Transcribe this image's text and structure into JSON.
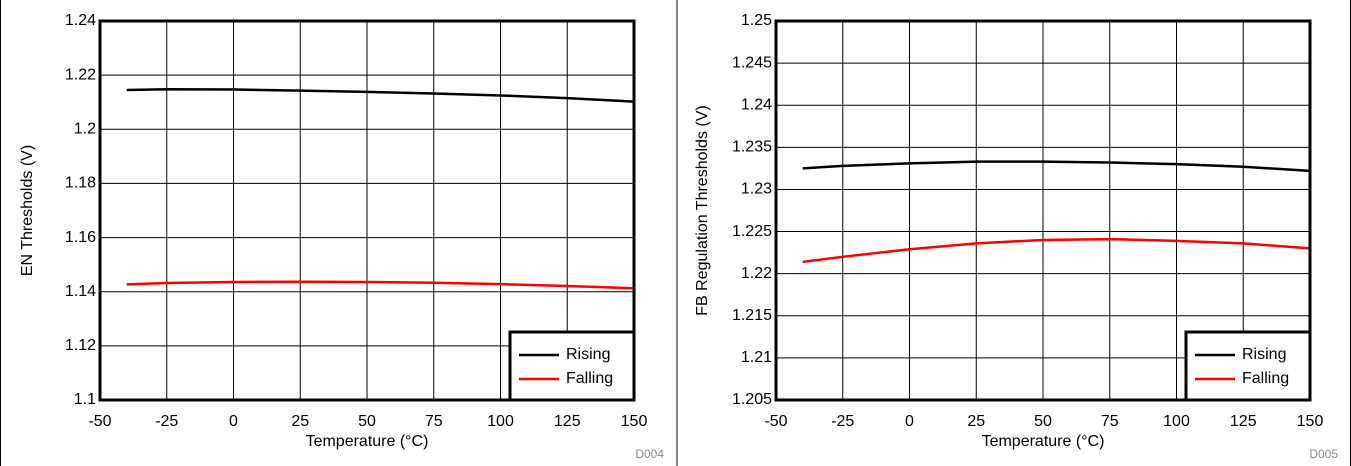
{
  "chart_data": [
    {
      "type": "line",
      "xlabel": "Temperature (°C)",
      "ylabel": "EN Thresholds (V)",
      "footnote": "D004",
      "x": [
        -40,
        -25,
        0,
        25,
        50,
        75,
        100,
        125,
        150
      ],
      "series": [
        {
          "name": "Rising",
          "color": "#000000",
          "values": [
            1.2145,
            1.2148,
            1.2147,
            1.2143,
            1.2138,
            1.2132,
            1.2125,
            1.2115,
            1.2102
          ]
        },
        {
          "name": "Falling",
          "color": "#ff0000",
          "values": [
            1.1427,
            1.1432,
            1.1436,
            1.1437,
            1.1436,
            1.1433,
            1.1428,
            1.1421,
            1.1413
          ]
        }
      ],
      "xlim": [
        -50,
        150
      ],
      "xticks": [
        -50,
        -25,
        0,
        25,
        50,
        75,
        100,
        125,
        150
      ],
      "ylim": [
        1.1,
        1.24
      ],
      "yticks": [
        1.1,
        1.12,
        1.14,
        1.16,
        1.18,
        1.2,
        1.22,
        1.24
      ],
      "grid": true,
      "legend": "lower right"
    },
    {
      "type": "line",
      "xlabel": "Temperature (°C)",
      "ylabel": "FB Regulation Thresholds (V)",
      "footnote": "D005",
      "x": [
        -40,
        -25,
        0,
        25,
        50,
        75,
        100,
        125,
        150
      ],
      "series": [
        {
          "name": "Rising",
          "color": "#000000",
          "values": [
            1.2325,
            1.2328,
            1.2331,
            1.2333,
            1.2333,
            1.2332,
            1.233,
            1.2327,
            1.2322
          ]
        },
        {
          "name": "Falling",
          "color": "#ff0000",
          "values": [
            1.2214,
            1.222,
            1.2229,
            1.2236,
            1.224,
            1.2241,
            1.2239,
            1.2236,
            1.223
          ]
        }
      ],
      "xlim": [
        -50,
        150
      ],
      "xticks": [
        -50,
        -25,
        0,
        25,
        50,
        75,
        100,
        125,
        150
      ],
      "ylim": [
        1.205,
        1.25
      ],
      "yticks": [
        1.205,
        1.21,
        1.215,
        1.22,
        1.225,
        1.23,
        1.235,
        1.24,
        1.245,
        1.25
      ],
      "grid": true,
      "legend": "lower right"
    }
  ]
}
